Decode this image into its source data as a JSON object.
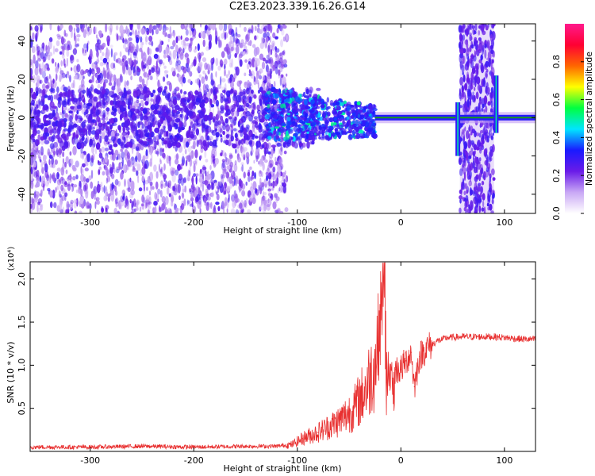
{
  "title": "C2E3.2023.339.16.26.G14",
  "colors": {
    "snr_line": "#e83030",
    "ridge": "#1a9a1a",
    "noise": "#6a1be8"
  },
  "chart_data": [
    {
      "type": "heatmap",
      "title": "C2E3.2023.339.16.26.G14",
      "xlabel": "Height of straight line (km)",
      "ylabel": "Frequency (Hz)",
      "xlim": [
        -358,
        130
      ],
      "ylim": [
        -50,
        49
      ],
      "xticks": [
        -300,
        -200,
        -100,
        0,
        100
      ],
      "yticks": [
        -40,
        -20,
        0,
        20,
        40
      ],
      "colorbar": {
        "label": "Normalized spectral amplitude",
        "range": [
          0.0,
          1.0
        ],
        "ticks": [
          "0.0",
          "0.2",
          "0.4",
          "0.6",
          "0.8"
        ],
        "tick_values": [
          0.0,
          0.2,
          0.4,
          0.6,
          0.8
        ],
        "colormap": [
          "#ffffff",
          "#c9a8f5",
          "#6a1be8",
          "#1a1aff",
          "#00e5ff",
          "#00ff40",
          "#ffff00",
          "#ff6600",
          "#ff0033",
          "#ff1a8c"
        ]
      },
      "features": {
        "noise_band_x": [
          -358,
          -110
        ],
        "cluster_x": [
          -130,
          -25
        ],
        "carrier_x": [
          -25,
          130
        ],
        "carrier_freq": 0,
        "noise_columns_x": [
          [
            57,
            90
          ]
        ],
        "spikes": [
          {
            "x": 55,
            "freq_range": [
              -20,
              8
            ]
          },
          {
            "x": 92,
            "freq_range": [
              -8,
              22
            ]
          }
        ]
      }
    },
    {
      "type": "line",
      "xlabel": "Height of straight line (km)",
      "ylabel": "SNR (10 * v/v)",
      "y_multiplier": "(x10⁴)",
      "xlim": [
        -358,
        130
      ],
      "ylim": [
        0,
        2.2
      ],
      "xticks": [
        -300,
        -200,
        -100,
        0,
        100
      ],
      "yticks": [
        0.5,
        1.0,
        1.5,
        2.0
      ],
      "ytick_labels": [
        "0.5",
        "1.0",
        "1.5",
        "2.0"
      ],
      "series": [
        {
          "x": [
            -358,
            -300,
            -250,
            -200,
            -150,
            -120,
            -105,
            -95,
            -80,
            -60,
            -45,
            -35,
            -25,
            -20,
            -16,
            -14,
            -12,
            -8,
            -5,
            0,
            5,
            10,
            13,
            18,
            25,
            35,
            45,
            60,
            80,
            90,
            100,
            110,
            120,
            130
          ],
          "y": [
            0.05,
            0.05,
            0.06,
            0.05,
            0.06,
            0.06,
            0.08,
            0.15,
            0.22,
            0.35,
            0.5,
            0.7,
            1.0,
            1.5,
            2.15,
            0.8,
            0.9,
            0.85,
            0.95,
            0.95,
            1.05,
            1.15,
            0.75,
            1.1,
            1.2,
            1.28,
            1.32,
            1.33,
            1.33,
            1.33,
            1.32,
            1.31,
            1.3,
            1.3
          ]
        }
      ]
    }
  ]
}
